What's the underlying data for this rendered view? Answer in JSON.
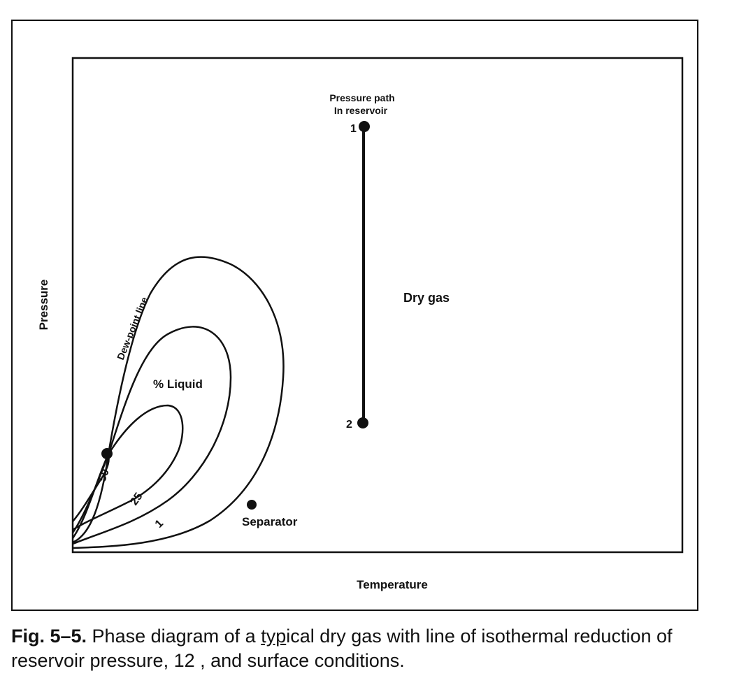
{
  "diagram": {
    "title_point1_line1": "Pressure path",
    "title_point1_line2": "In reservoir",
    "point1_label": "1",
    "point2_label": "2",
    "region_label": "Dry gas",
    "dew_point_label": "Dew-point line",
    "liquid_label": "% Liquid",
    "curve_labels": [
      "50",
      "25",
      "1"
    ],
    "separator_label": "Separator",
    "x_axis_label": "Temperature",
    "y_axis_label": "Pressure"
  },
  "caption": {
    "fig_number": "Fig. 5–5.",
    "text_pre": " Phase diagram of a ",
    "text_underlined": "typ",
    "text_post": "ical dry gas with line of isothermal reduction of reservoir pressure, 12 , and surface conditions."
  }
}
